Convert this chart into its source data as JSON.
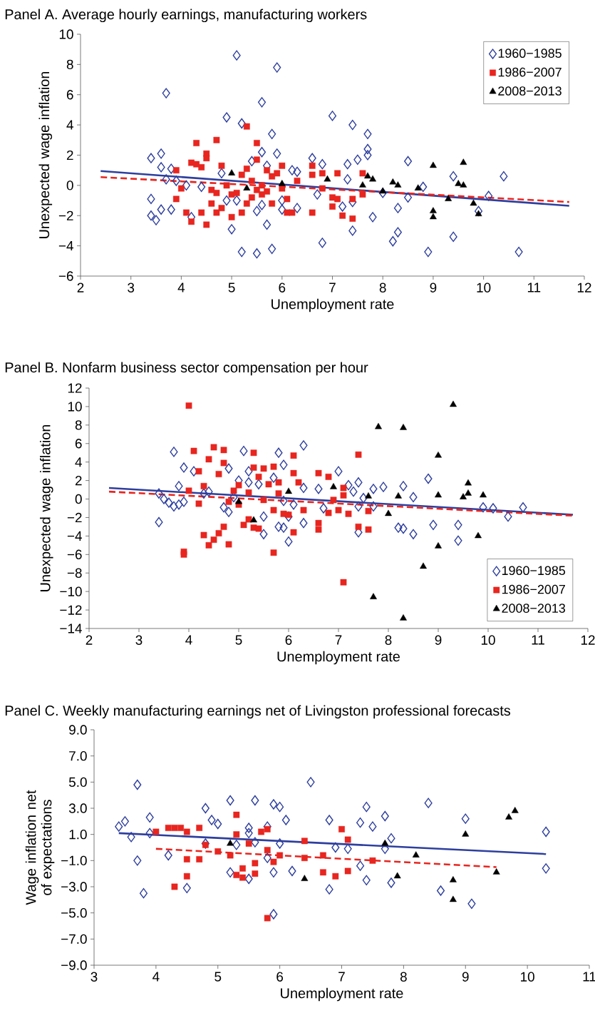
{
  "chart_data": [
    {
      "type": "scatter",
      "title": "Panel A. Average hourly earnings, manufacturing workers",
      "xlabel": "Unemployment rate",
      "ylabel": "Unexpected wage inflation",
      "xlim": [
        2,
        12
      ],
      "ylim": [
        -6,
        10
      ],
      "xticks": [
        2,
        3,
        4,
        5,
        6,
        7,
        8,
        9,
        10,
        11,
        12
      ],
      "yticks": [
        {
          "value": -6,
          "label": "−6"
        },
        {
          "value": -4,
          "label": "−4"
        },
        {
          "value": -2,
          "label": "−2"
        },
        0,
        2,
        4,
        6,
        8,
        10
      ],
      "legend": "top right",
      "series": [
        {
          "name": "1960−1985",
          "color": "#2e3f9e",
          "marker": "diamond",
          "x": [
            3.4,
            3.6,
            3.6,
            3.7,
            3.8,
            3.7,
            3.9,
            3.4,
            3.4,
            3.5,
            3.6,
            3.8,
            4.1,
            4.2,
            4.4,
            4.8,
            4.9,
            4.9,
            5.0,
            5.1,
            5.1,
            5.2,
            5.2,
            5.4,
            5.5,
            5.5,
            5.6,
            5.6,
            5.6,
            5.7,
            5.7,
            5.8,
            5.8,
            5.9,
            5.9,
            6.0,
            6.0,
            6.2,
            6.3,
            6.3,
            6.6,
            6.7,
            6.8,
            6.8,
            7.0,
            7.2,
            7.3,
            7.3,
            7.4,
            7.4,
            7.4,
            7.5,
            7.7,
            7.7,
            7.7,
            7.8,
            8.0,
            8.2,
            8.3,
            8.3,
            8.5,
            8.5,
            8.8,
            8.9,
            9.4,
            9.4,
            9.9,
            10.1,
            10.4,
            10.7
          ],
          "values": [
            1.8,
            2.1,
            1.2,
            6.1,
            1.1,
            0.4,
            0.3,
            -0.9,
            -2.0,
            -2.3,
            -1.6,
            -1.6,
            0.0,
            -2.1,
            -0.1,
            0.8,
            4.5,
            -1.0,
            -2.9,
            8.6,
            -1.0,
            4.1,
            -4.4,
            1.6,
            -4.5,
            -1.7,
            5.5,
            -1.3,
            2.2,
            1.3,
            -2.6,
            -4.2,
            3.4,
            7.8,
            2.1,
            -1.6,
            -1.0,
            1.0,
            0.9,
            -1.5,
            1.8,
            -0.6,
            1.4,
            -3.8,
            4.6,
            -1.4,
            1.4,
            0.4,
            4.0,
            -3.0,
            -1.1,
            1.7,
            3.4,
            2.4,
            2.0,
            -2.1,
            -0.5,
            -3.7,
            -3.1,
            -1.5,
            1.6,
            -0.8,
            -0.1,
            -4.4,
            0.6,
            -3.4,
            -1.7,
            -0.7,
            0.6,
            -4.4
          ]
        },
        {
          "name": "1986−2007",
          "color": "#e8251f",
          "marker": "square",
          "x": [
            3.9,
            3.9,
            4.0,
            4.1,
            4.2,
            4.2,
            4.3,
            4.3,
            4.4,
            4.4,
            4.5,
            4.5,
            4.5,
            4.6,
            4.6,
            4.7,
            4.7,
            4.7,
            4.8,
            4.8,
            4.9,
            5.0,
            5.0,
            5.1,
            5.2,
            5.2,
            5.3,
            5.3,
            5.3,
            5.4,
            5.4,
            5.5,
            5.5,
            5.5,
            5.6,
            5.6,
            5.7,
            5.7,
            5.8,
            5.8,
            5.9,
            6.0,
            6.0,
            6.1,
            6.1,
            6.2,
            6.3,
            6.6,
            6.6,
            6.6,
            6.8,
            6.8,
            7.0,
            7.0,
            7.1,
            7.1,
            7.2,
            7.4,
            7.4,
            7.6,
            7.6
          ],
          "values": [
            1.0,
            -0.9,
            -0.2,
            -1.8,
            -2.4,
            1.5,
            2.8,
            1.4,
            1.2,
            -1.8,
            2.1,
            1.8,
            -2.6,
            -0.3,
            -1.2,
            3.0,
            -0.5,
            -1.8,
            1.3,
            -1.5,
            0.0,
            -2.1,
            -0.6,
            -0.5,
            0.7,
            -1.8,
            3.9,
            1.1,
            -1.2,
            0.3,
            -0.8,
            1.7,
            -0.3,
            2.8,
            0.0,
            -0.6,
            1.0,
            -0.4,
            0.6,
            -1.2,
            0.8,
            1.3,
            -0.2,
            -0.9,
            -1.8,
            -1.8,
            0.3,
            1.3,
            0.7,
            -1.8,
            0.8,
            -0.2,
            -0.8,
            -1.4,
            0.8,
            -0.9,
            -2.0,
            -0.9,
            -2.2,
            0.8,
            -0.6
          ]
        },
        {
          "name": "2008−2013",
          "color": "#000000",
          "marker": "triangle",
          "x": [
            5.0,
            5.3,
            6.0,
            6.9,
            7.6,
            7.7,
            7.8,
            8.0,
            8.2,
            8.3,
            8.7,
            9.0,
            9.0,
            9.0,
            9.3,
            9.5,
            9.6,
            9.6,
            9.8,
            9.9
          ],
          "values": [
            0.8,
            -0.2,
            0.1,
            0.4,
            0.0,
            0.6,
            0.4,
            -0.4,
            0.2,
            0.0,
            -0.2,
            1.3,
            -1.7,
            -2.1,
            -0.9,
            0.1,
            1.5,
            0.0,
            -1.2,
            -1.9
          ]
        },
        {
          "type": "line",
          "color": "#2e3f9e",
          "line_style": "solid",
          "x": [
            2.4,
            11.7
          ],
          "values": [
            0.95,
            -1.35
          ]
        },
        {
          "type": "line",
          "color": "#e8251f",
          "line_style": "dashed",
          "x": [
            2.4,
            11.7
          ],
          "values": [
            0.55,
            -1.1
          ]
        }
      ]
    },
    {
      "type": "scatter",
      "title": "Panel B. Nonfarm business sector compensation per hour",
      "xlabel": "Unemployment rate",
      "ylabel": "Unexpected wage inflation",
      "xlim": [
        2,
        12
      ],
      "ylim": [
        -14,
        12
      ],
      "xticks": [
        2,
        3,
        4,
        5,
        6,
        7,
        8,
        9,
        10,
        11,
        12
      ],
      "yticks": [
        {
          "value": -14,
          "label": "−14"
        },
        {
          "value": -12,
          "label": "−12"
        },
        {
          "value": -10,
          "label": "−10"
        },
        {
          "value": -8,
          "label": "−8"
        },
        {
          "value": -6,
          "label": "−6"
        },
        {
          "value": -4,
          "label": "−4"
        },
        {
          "value": -2,
          "label": "−2"
        },
        0,
        2,
        4,
        6,
        8,
        10,
        12
      ],
      "legend": "bottom right",
      "series": [
        {
          "name": "1960−1985",
          "color": "#2e3f9e",
          "marker": "diamond",
          "x": [
            3.4,
            3.4,
            3.5,
            3.6,
            3.7,
            3.7,
            3.8,
            3.8,
            3.9,
            3.9,
            4.1,
            4.3,
            4.4,
            4.7,
            4.8,
            4.8,
            4.9,
            5.0,
            5.1,
            5.2,
            5.2,
            5.4,
            5.5,
            5.5,
            5.7,
            5.8,
            5.8,
            5.9,
            5.9,
            5.9,
            6.0,
            6.0,
            6.1,
            6.3,
            6.3,
            6.3,
            6.6,
            6.7,
            7.0,
            7.2,
            7.3,
            7.4,
            7.4,
            7.4,
            7.5,
            7.7,
            7.7,
            7.9,
            8.2,
            8.3,
            8.3,
            8.5,
            8.5,
            8.8,
            8.9,
            9.4,
            9.4,
            9.9,
            10.1,
            10.4,
            10.7
          ],
          "values": [
            0.6,
            -2.5,
            0.0,
            -0.4,
            5.1,
            -0.8,
            1.4,
            -0.6,
            3.4,
            -0.3,
            3.0,
            0.6,
            0.8,
            -0.9,
            3.3,
            -1.4,
            0.2,
            2.0,
            5.2,
            3.0,
            1.8,
            1.6,
            -1.9,
            -3.8,
            2.3,
            5.0,
            -3.0,
            3.7,
            -3.1,
            -0.2,
            -1.9,
            -4.6,
            -0.6,
            5.8,
            1.2,
            -2.6,
            1.1,
            -1.0,
            3.0,
            1.5,
            0.8,
            1.8,
            -0.8,
            -3.6,
            0.1,
            1.1,
            -0.8,
            1.3,
            -3.1,
            1.4,
            -3.2,
            0.2,
            -3.8,
            2.2,
            -2.8,
            -2.8,
            -4.5,
            -0.9,
            -1.0,
            -1.9,
            -0.9
          ]
        },
        {
          "name": "1986−2007",
          "color": "#e8251f",
          "marker": "square",
          "x": [
            3.9,
            3.9,
            4.0,
            4.0,
            4.1,
            4.2,
            4.2,
            4.3,
            4.3,
            4.4,
            4.4,
            4.5,
            4.5,
            4.6,
            4.6,
            4.7,
            4.7,
            4.7,
            4.8,
            4.8,
            4.9,
            5.0,
            5.0,
            5.1,
            5.2,
            5.2,
            5.3,
            5.3,
            5.3,
            5.4,
            5.4,
            5.5,
            5.5,
            5.6,
            5.7,
            5.7,
            5.7,
            5.8,
            5.8,
            5.9,
            6.0,
            6.1,
            6.1,
            6.1,
            6.2,
            6.3,
            6.6,
            6.6,
            6.6,
            6.8,
            6.8,
            6.9,
            7.0,
            7.1,
            7.1,
            7.1,
            7.2,
            7.4,
            7.4,
            7.6,
            7.6
          ],
          "values": [
            -5.7,
            -6.0,
            10.1,
            0.9,
            5.2,
            3.0,
            -0.5,
            1.4,
            -3.9,
            4.3,
            -5.0,
            5.6,
            -4.4,
            2.7,
            -3.7,
            5.3,
            3.9,
            -3.0,
            -4.9,
            -0.3,
            0.9,
            1.5,
            -0.6,
            -2.8,
            -2.2,
            0.7,
            5.0,
            3.4,
            -3.1,
            2.4,
            -3.2,
            3.3,
            -0.1,
            1.6,
            3.5,
            -1.2,
            -5.8,
            1.8,
            0.6,
            -1.6,
            -1.7,
            4.7,
            2.8,
            -3.6,
            1.8,
            -1.2,
            2.8,
            -2.6,
            -3.3,
            2.4,
            -1.5,
            -0.1,
            -1.2,
            1.2,
            0.4,
            -9.0,
            -1.6,
            4.8,
            -3.0,
            -1.3,
            -3.3
          ]
        },
        {
          "name": "2008−2013",
          "color": "#000000",
          "marker": "triangle",
          "x": [
            5.0,
            5.3,
            6.0,
            6.9,
            7.6,
            7.7,
            7.8,
            8.0,
            8.2,
            8.3,
            8.3,
            8.7,
            9.0,
            9.0,
            9.0,
            9.3,
            9.5,
            9.6,
            9.6,
            9.8,
            9.9
          ],
          "values": [
            -0.3,
            -2.3,
            0.8,
            1.3,
            0.3,
            -10.6,
            7.8,
            -1.6,
            0.3,
            7.7,
            -12.9,
            -7.3,
            4.7,
            0.4,
            -5.1,
            10.2,
            0.2,
            1.7,
            0.6,
            -4.0,
            0.4
          ]
        },
        {
          "type": "line",
          "color": "#2e3f9e",
          "line_style": "solid",
          "x": [
            2.4,
            11.7
          ],
          "values": [
            1.2,
            -1.7
          ]
        },
        {
          "type": "line",
          "color": "#e8251f",
          "line_style": "dashed",
          "x": [
            2.4,
            11.7
          ],
          "values": [
            0.8,
            -1.8
          ]
        }
      ]
    },
    {
      "type": "scatter",
      "title": "Panel C. Weekly manufacturing earnings net of Livingston professional forecasts",
      "xlabel": "Unemployment rate",
      "ylabel": "Wage inflation net of expectations",
      "xlim": [
        3,
        11
      ],
      "ylim": [
        -9,
        9
      ],
      "xticks": [
        3,
        4,
        5,
        6,
        7,
        8,
        9,
        10,
        11
      ],
      "yticks": [
        {
          "value": -9,
          "label": "−9.0"
        },
        {
          "value": -7,
          "label": "−7.0"
        },
        {
          "value": -5,
          "label": "−5.0"
        },
        {
          "value": -3,
          "label": "−3.0"
        },
        {
          "value": -1,
          "label": "−1.0"
        },
        {
          "value": 1,
          "label": "1.0"
        },
        {
          "value": 3,
          "label": "3.0"
        },
        {
          "value": 5,
          "label": "5.0"
        },
        {
          "value": 7,
          "label": "7.0"
        },
        {
          "value": 9,
          "label": "9.0"
        }
      ],
      "series": [
        {
          "color": "#2e3f9e",
          "marker": "diamond",
          "x": [
            3.4,
            3.5,
            3.6,
            3.7,
            3.7,
            3.8,
            3.9,
            3.9,
            4.2,
            4.5,
            4.8,
            4.8,
            4.9,
            5.0,
            5.2,
            5.2,
            5.3,
            5.5,
            5.5,
            5.5,
            5.6,
            5.6,
            5.8,
            5.8,
            5.9,
            5.9,
            5.9,
            6.0,
            6.0,
            6.1,
            6.2,
            6.5,
            6.8,
            6.8,
            6.9,
            7.1,
            7.3,
            7.3,
            7.4,
            7.4,
            7.5,
            7.7,
            7.7,
            7.8,
            7.8,
            8.4,
            8.6,
            9.0,
            9.1,
            10.3,
            10.3
          ],
          "values": [
            1.6,
            2.0,
            0.8,
            4.8,
            -1.0,
            -3.5,
            2.3,
            1.1,
            -0.6,
            -3.1,
            3.0,
            0.3,
            2.1,
            1.8,
            3.6,
            -1.9,
            0.2,
            1.5,
            1.1,
            -2.4,
            3.6,
            0.4,
            1.6,
            -0.8,
            3.3,
            -1.9,
            -5.1,
            3.1,
            0.3,
            2.1,
            -1.8,
            5.0,
            2.1,
            -3.2,
            0.0,
            -0.1,
            1.9,
            -1.4,
            3.1,
            -2.5,
            1.6,
            2.4,
            -0.1,
            0.7,
            -2.7,
            3.4,
            -3.3,
            2.2,
            -4.3,
            1.2,
            -1.6
          ]
        },
        {
          "color": "#e8251f",
          "marker": "square",
          "x": [
            4.0,
            4.2,
            4.3,
            4.3,
            4.4,
            4.5,
            4.5,
            4.5,
            4.7,
            4.7,
            4.8,
            5.0,
            5.2,
            5.3,
            5.3,
            5.3,
            5.4,
            5.4,
            5.5,
            5.6,
            5.6,
            5.7,
            5.8,
            5.8,
            5.8,
            5.9,
            6.0,
            6.4,
            6.4,
            6.7,
            6.7,
            6.9,
            7.0,
            7.1,
            7.1,
            7.5
          ],
          "values": [
            1.2,
            1.5,
            1.5,
            -3.0,
            1.5,
            1.2,
            -0.9,
            -2.2,
            1.5,
            -0.9,
            0.2,
            -0.3,
            -0.6,
            2.5,
            1.0,
            -2.1,
            -1.6,
            -2.3,
            0.3,
            -1.2,
            -2.0,
            1.2,
            1.4,
            -0.2,
            -5.4,
            -1.1,
            -0.6,
            0.5,
            -0.8,
            -0.6,
            -1.9,
            -2.2,
            1.4,
            0.6,
            -1.8,
            -1.0
          ]
        },
        {
          "color": "#000000",
          "marker": "triangle",
          "x": [
            5.2,
            6.4,
            7.7,
            7.9,
            8.2,
            8.8,
            8.8,
            9.0,
            9.5,
            9.7,
            9.8
          ],
          "values": [
            0.3,
            -2.4,
            0.3,
            -2.2,
            -0.6,
            -2.5,
            -4.0,
            1.0,
            -1.9,
            2.3,
            2.8
          ]
        },
        {
          "type": "line",
          "color": "#2e3f9e",
          "line_style": "solid",
          "x": [
            3.4,
            10.3
          ],
          "values": [
            1.1,
            -0.5
          ]
        },
        {
          "type": "line",
          "color": "#e8251f",
          "line_style": "dashed",
          "x": [
            4.0,
            9.5
          ],
          "values": [
            -0.1,
            -1.5
          ]
        }
      ]
    }
  ]
}
